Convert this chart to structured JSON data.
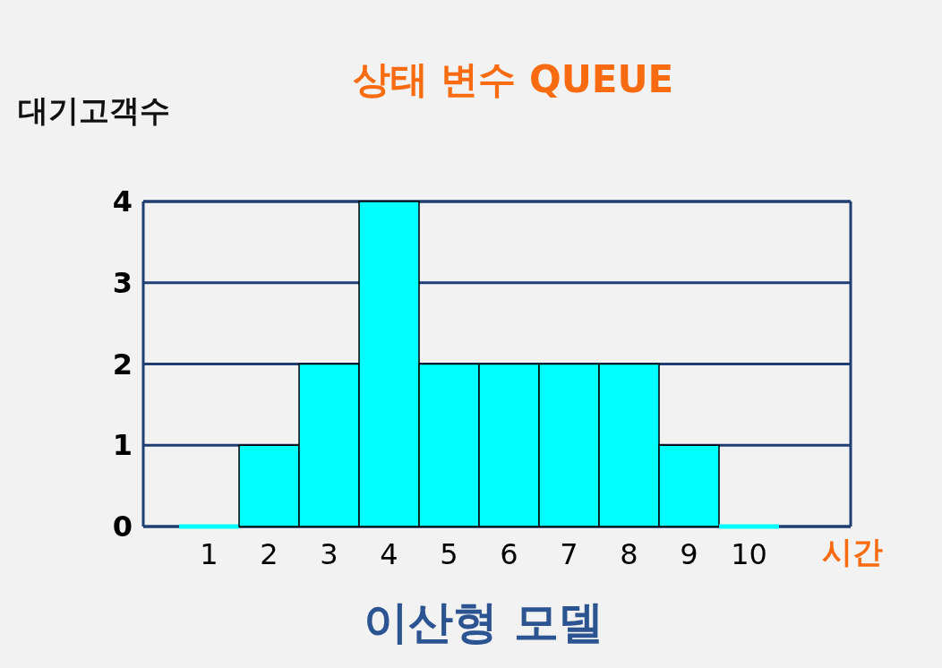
{
  "chart_data": {
    "type": "bar",
    "title": "상태 변수 QUEUE",
    "ylabel": "대기고객수",
    "xlabel": "시간",
    "annotations": [
      "이산형 모델"
    ],
    "categories": [
      "1",
      "2",
      "3",
      "4",
      "5",
      "6",
      "7",
      "8",
      "9",
      "10"
    ],
    "values": [
      0,
      1,
      2,
      4,
      2,
      2,
      2,
      2,
      1,
      0
    ],
    "color": "#00ffff",
    "ylim": [
      0,
      4
    ],
    "yticks": [
      0,
      1,
      2,
      3,
      4
    ],
    "grid": "y"
  }
}
